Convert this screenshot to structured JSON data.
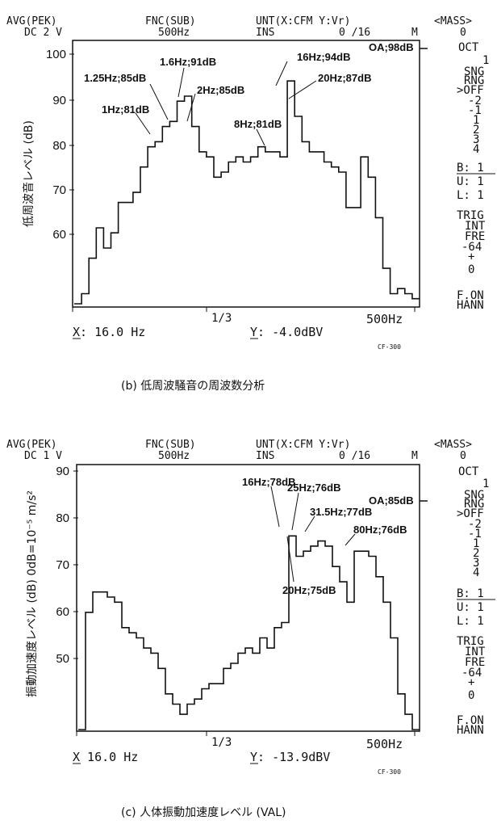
{
  "chart_data": [
    {
      "type": "line",
      "id": "b",
      "header": {
        "line1": [
          "AVG(PEK)",
          "FNC(SUB)",
          "UNT(X:CFM Y:Vr)",
          "<MASS>"
        ],
        "line2": [
          "DC  2 V",
          "500Hz",
          "INS",
          "0  /16",
          "M",
          "0"
        ]
      },
      "ylabel": "低周波音レベル (dB)",
      "yticks": [
        "100",
        "90",
        "80",
        "70",
        "60"
      ],
      "ylim": [
        50,
        102
      ],
      "x_mid_label": "1/3",
      "x_end_label": "500Hz",
      "series": [
        {
          "x": [
            1,
            2,
            3,
            4,
            5,
            6,
            7,
            8,
            9,
            10,
            11,
            12,
            13,
            14,
            15,
            16,
            17,
            18,
            19,
            20,
            21,
            22,
            23,
            24,
            25,
            26,
            27,
            28,
            29,
            30,
            31,
            32,
            33,
            34,
            35,
            36,
            37,
            38,
            39,
            40,
            41,
            42,
            43,
            44,
            45,
            46,
            47
          ],
          "values": [
            50,
            52,
            59,
            65,
            61,
            64,
            70,
            70,
            72,
            77,
            81,
            82,
            85,
            86,
            90,
            91,
            85,
            80,
            79,
            75,
            76,
            78,
            79,
            78,
            79,
            81,
            80,
            80,
            79,
            94,
            87,
            82,
            80,
            80,
            78,
            77,
            76,
            69,
            69,
            79,
            75,
            67,
            57,
            52,
            53,
            52,
            51
          ]
        }
      ],
      "annotations": [
        "1Hz;81dB",
        "1.25Hz;85dB",
        "1.6Hz;91dB",
        "2Hz;85dB",
        "8Hz;81dB",
        "16Hz;94dB",
        "20Hz;87dB",
        "OA;98dB"
      ],
      "sidebar": [
        "OCT",
        "1",
        "SNG",
        "RNG",
        ">OFF",
        "-2",
        "-1",
        "1",
        "2",
        "3",
        "4"
      ],
      "sidebar_bul": [
        "B: 1",
        "U: 1",
        "L: 1"
      ],
      "sidebar_trig": [
        "TRIG",
        "INT",
        "FRE",
        "-64",
        "+",
        "0"
      ],
      "sidebar_win": [
        "F.ON",
        "HANN"
      ],
      "footer_x": "X:  16.0 Hz",
      "footer_y": "Y:  -4.0dBV",
      "code": "CF-300",
      "caption": "(b) 低周波騒音の周波数分析"
    },
    {
      "type": "line",
      "id": "c",
      "header": {
        "line1": [
          "AVG(PEK)",
          "FNC(SUB)",
          "UNT(X:CFM Y:Vr)",
          "<MASS>"
        ],
        "line2": [
          "DC  1 V",
          "500Hz",
          "INS",
          "0  /16",
          "M",
          "0"
        ]
      },
      "ylabel": "振動加速度レベル (dB) 0dB=10⁻⁵ m/s²",
      "yticks": [
        "90",
        "80",
        "70",
        "60",
        "50"
      ],
      "ylim": [
        40,
        92
      ],
      "x_mid_label": "1/3",
      "x_end_label": "500Hz",
      "series": [
        {
          "x": [
            1,
            2,
            3,
            4,
            5,
            6,
            7,
            8,
            9,
            10,
            11,
            12,
            13,
            14,
            15,
            16,
            17,
            18,
            19,
            20,
            21,
            22,
            23,
            24,
            25,
            26,
            27,
            28,
            29,
            30,
            31,
            32,
            33,
            34,
            35,
            36,
            37,
            38,
            39,
            40,
            41,
            42,
            43,
            44,
            45,
            46,
            47
          ],
          "values": [
            40,
            63,
            67,
            67,
            66,
            65,
            60,
            59,
            58,
            56,
            55,
            52,
            47,
            45,
            43,
            45,
            46,
            48,
            49,
            49,
            52,
            53,
            55,
            56,
            55,
            58,
            56,
            60,
            61,
            78,
            74,
            75,
            76,
            77,
            76,
            72,
            69,
            65,
            75,
            75,
            74,
            70,
            65,
            58,
            47,
            43,
            40
          ]
        }
      ],
      "annotations": [
        "16Hz;78dB",
        "25Hz;76dB",
        "31.5Hz;77dB",
        "80Hz;76dB",
        "20Hz;75dB",
        "OA;85dB"
      ],
      "sidebar": [
        "OCT",
        "1",
        "SNG",
        "RNG",
        ">OFF",
        "-2",
        "-1",
        "1",
        "2",
        "3",
        "4"
      ],
      "sidebar_bul": [
        "B: 1",
        "U: 1",
        "L: 1"
      ],
      "sidebar_trig": [
        "TRIG",
        "INT",
        "FRE",
        "-64",
        "+",
        "0"
      ],
      "sidebar_win": [
        "F.ON",
        "HANN"
      ],
      "footer_x": "X   16.0 Hz",
      "footer_y": "Y: -13.9dBV",
      "code": "CF-300",
      "caption": "(c) 人体振動加速度レベル (VAL)"
    }
  ]
}
